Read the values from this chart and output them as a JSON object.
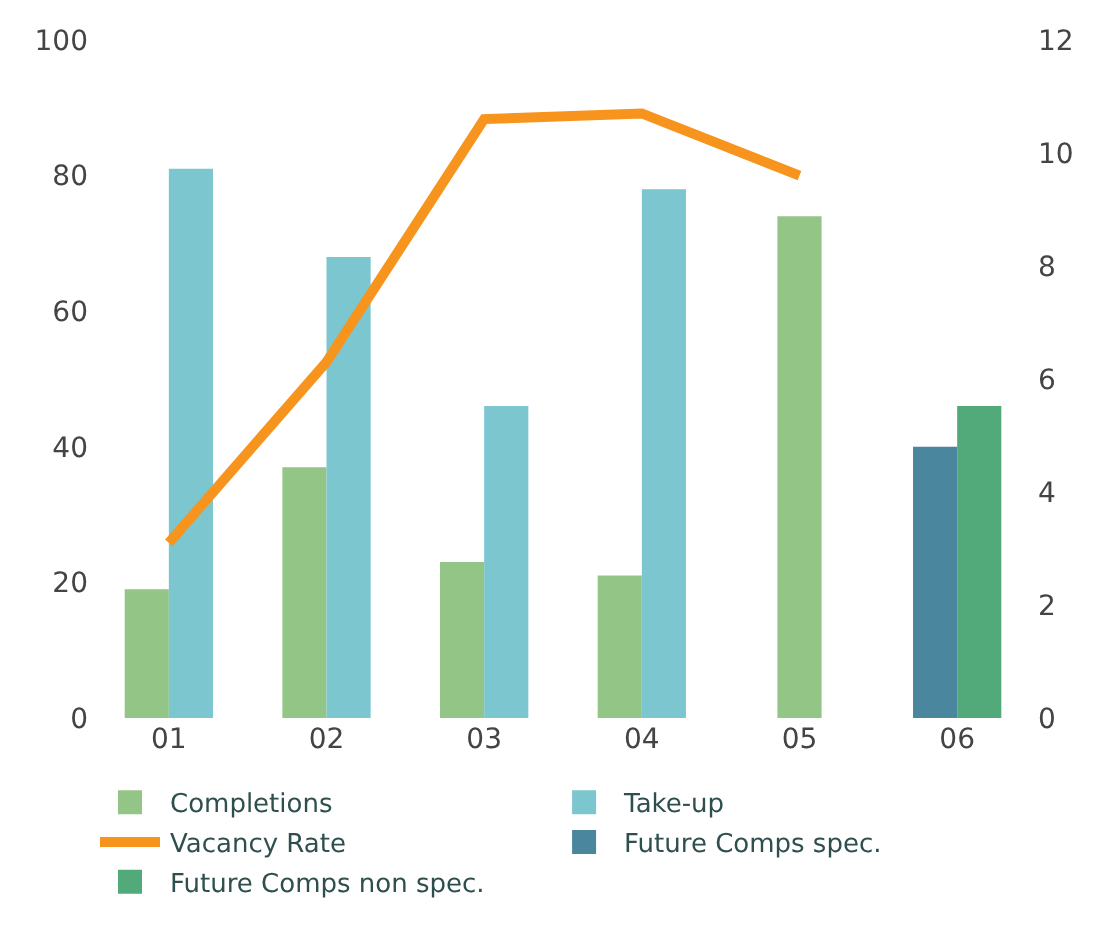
{
  "chart_data": {
    "type": "bar",
    "categories": [
      "01",
      "02",
      "03",
      "04",
      "05",
      "06"
    ],
    "series": [
      {
        "name": "Completions",
        "color": "#93c586",
        "values": [
          19,
          37,
          23,
          21,
          74,
          null
        ]
      },
      {
        "name": "Take-up",
        "color": "#7cc6d0",
        "values": [
          81,
          68,
          46,
          78,
          null,
          null
        ]
      },
      {
        "name": "Vacancy Rate",
        "color": "#f7941d",
        "type": "line",
        "axis": "y2",
        "values": [
          3.1,
          6.3,
          10.6,
          10.7,
          9.6,
          null
        ]
      },
      {
        "name": "Future Comps spec.",
        "color": "#4a879e",
        "values": [
          null,
          null,
          null,
          null,
          null,
          40
        ]
      },
      {
        "name": "Future Comps non spec.",
        "color": "#52a97a",
        "values": [
          null,
          null,
          null,
          null,
          null,
          46
        ]
      }
    ],
    "ylim": [
      0,
      100
    ],
    "yticks": [
      0,
      20,
      40,
      60,
      80,
      100
    ],
    "y2lim": [
      0,
      12
    ],
    "y2ticks": [
      0,
      2,
      4,
      6,
      8,
      10,
      12
    ],
    "legend": "bottom",
    "marker": "none",
    "line_style": "solid"
  }
}
